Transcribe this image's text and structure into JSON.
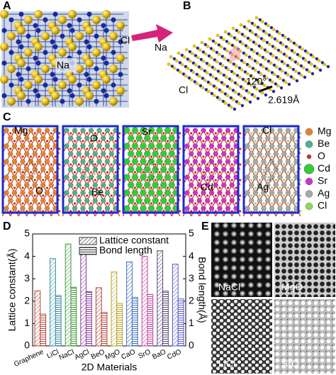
{
  "panel_labels": [
    "A",
    "B",
    "C",
    "D",
    "E"
  ],
  "panel_a": {
    "labels": [
      "Na",
      "Cl"
    ]
  },
  "panel_b": {
    "labels": [
      "Na",
      "Cl",
      "120°",
      "2.619Å"
    ]
  },
  "panel_c": {
    "structures": [
      [
        "Mg",
        "O"
      ],
      [
        "O",
        "Be"
      ],
      [
        "Sr"
      ],
      [
        "Cd"
      ],
      [
        "Cl",
        "Ag"
      ]
    ],
    "legend": [
      {
        "name": "Mg",
        "color": "#e0862a"
      },
      {
        "name": "Be",
        "color": "#4fb08a"
      },
      {
        "name": "O",
        "color": "#d62a1e"
      },
      {
        "name": "Cd",
        "color": "#33cc33"
      },
      {
        "name": "Sr",
        "color": "#cc33cc"
      },
      {
        "name": "Ag",
        "color": "#a8a8a8"
      },
      {
        "name": "Cl",
        "color": "#88dd55"
      }
    ]
  },
  "panel_e": {
    "images": [
      "NaCl",
      "MgO",
      "LiCl",
      "SrO"
    ]
  },
  "chart_data": {
    "type": "bar",
    "ylabel": "Lattice constant(Å)",
    "y2label": "Bond length(Å)",
    "xlabel": "2D Materials",
    "categories": [
      "Graphene",
      "LiCl",
      "NaCl",
      "AgCl",
      "BeO",
      "MgO",
      "CaO",
      "SrO",
      "BaO",
      "CdO"
    ],
    "colors": [
      "#b5483e",
      "#3a8fa0",
      "#3d9a3d",
      "#8a3f9a",
      "#b5483e",
      "#b8a42a",
      "#3f6fc0",
      "#c0409a",
      "#5a4a7a",
      "#5a5ac8"
    ],
    "series": [
      {
        "name": "Lattice constant",
        "values": [
          2.46,
          3.9,
          4.55,
          4.2,
          2.6,
          3.3,
          3.75,
          4.0,
          4.25,
          3.65
        ]
      },
      {
        "name": "Bond length",
        "axis": "y2",
        "values": [
          1.42,
          2.25,
          2.62,
          2.42,
          1.5,
          1.9,
          2.17,
          2.3,
          2.45,
          2.1
        ]
      }
    ],
    "ylim": [
      0,
      5
    ],
    "yticks": [
      0,
      1,
      2,
      3,
      4,
      5
    ],
    "y2lim": [
      0,
      5
    ],
    "y2ticks": [
      0,
      1,
      2,
      3,
      4,
      5
    ]
  }
}
